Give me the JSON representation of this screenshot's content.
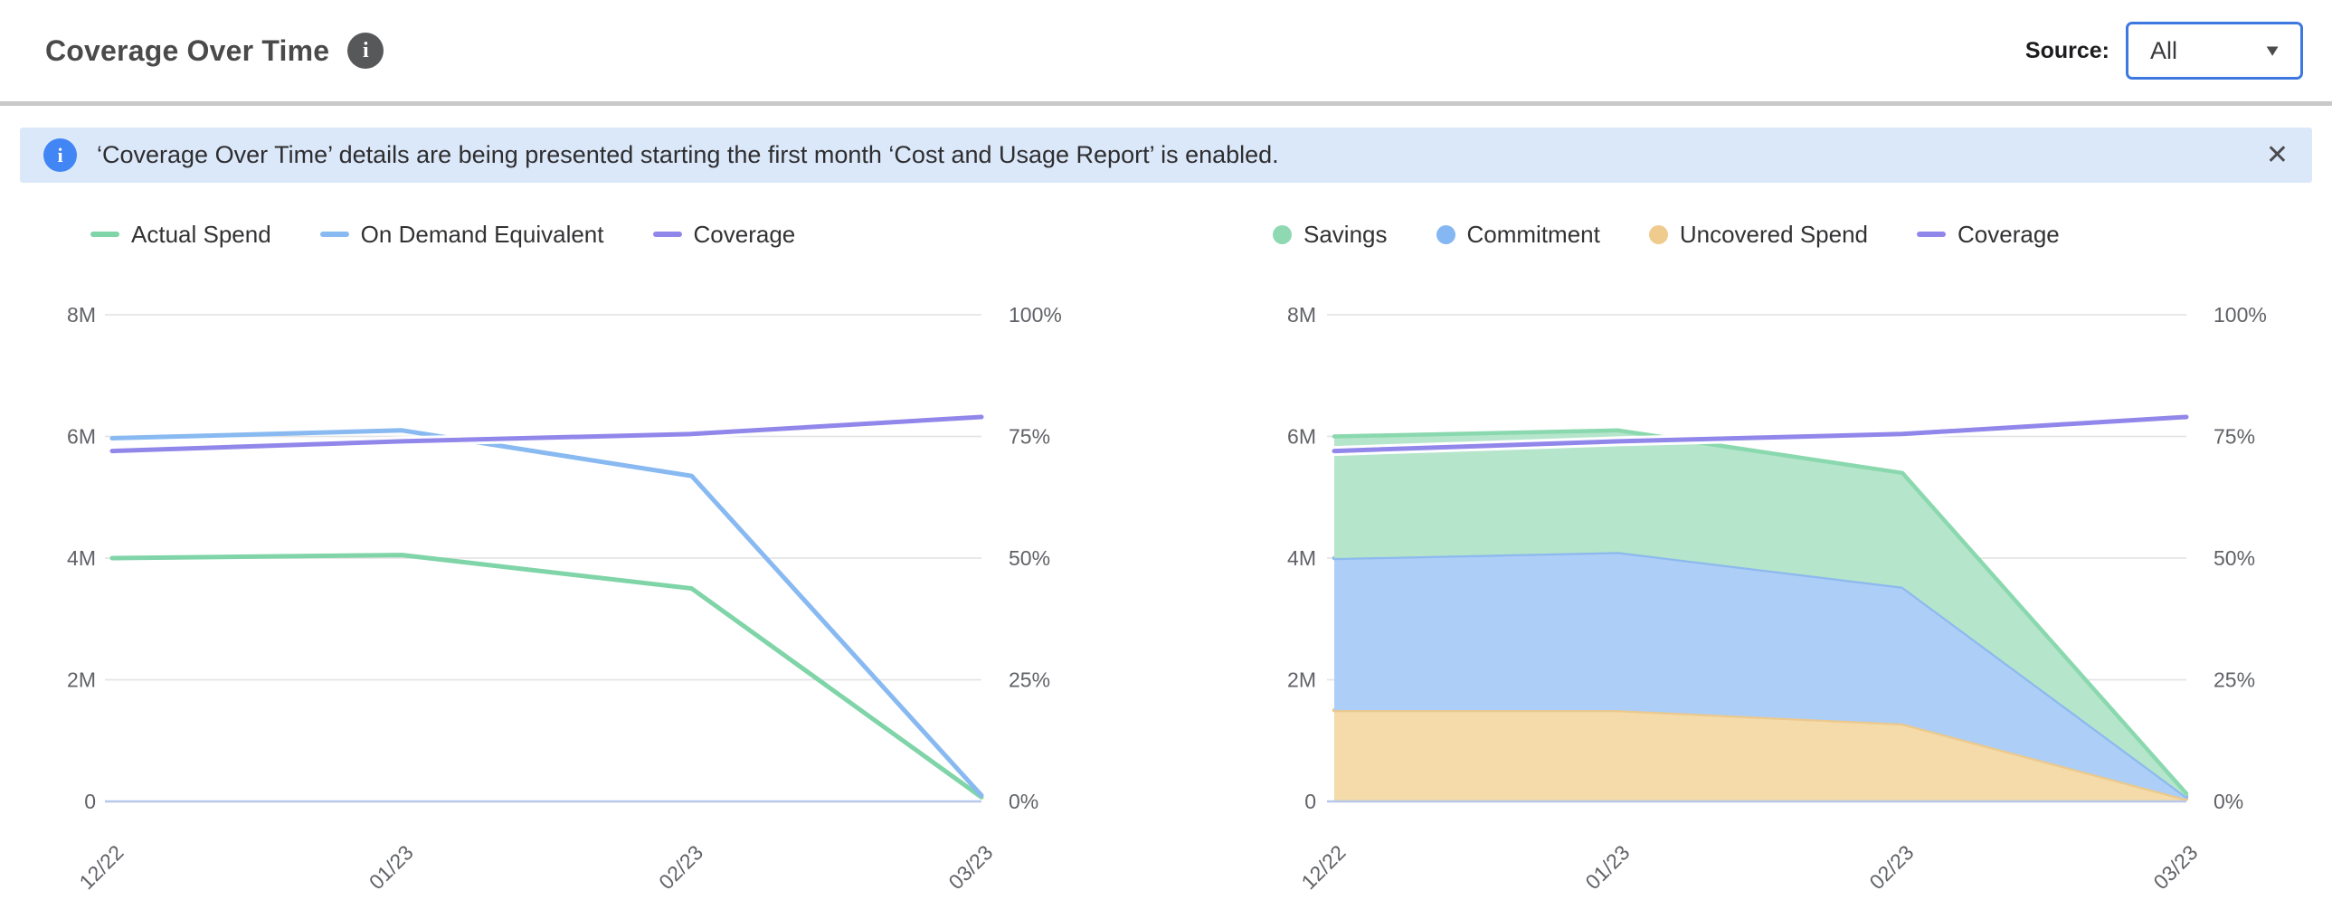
{
  "header": {
    "title": "Coverage Over Time",
    "info_glyph": "i",
    "source_label": "Source:",
    "source_value": "All",
    "dropdown_arrow": "▼"
  },
  "banner": {
    "info_glyph": "i",
    "text": "‘Coverage Over Time’ details are being presented starting the first month ‘Cost and Usage Report’ is enabled.",
    "close_glyph": "✕"
  },
  "colors": {
    "accent_blue": "#3c78e0",
    "banner_bg": "#dbe8fa",
    "banner_icon_blue": "#4285f4",
    "grid": "#e4e4e7",
    "zero_line": "#b7c7ea",
    "green": "#7fd4a8",
    "green_fill": "#b5e5cb",
    "blue": "#88b9f1",
    "blue_fill": "#adcef6",
    "purple": "#9186ea",
    "orange": "#ecc98d",
    "orange_fill": "#f4dba9"
  },
  "chart_data": [
    {
      "type": "line",
      "title": "",
      "categories": [
        "12/22",
        "01/23",
        "02/23",
        "03/23"
      ],
      "unit_left": "M",
      "ylim_left": [
        0,
        8
      ],
      "ylim_right": [
        0,
        100
      ],
      "y_left_ticks": [
        "0",
        "2M",
        "4M",
        "6M",
        "8M"
      ],
      "y_right_ticks": [
        "0%",
        "25%",
        "50%",
        "75%",
        "100%"
      ],
      "grid": true,
      "legend_position": "top",
      "legend": [
        {
          "label": "Actual Spend",
          "swatch": "line",
          "color": "#7fd4a8"
        },
        {
          "label": "On Demand Equivalent",
          "swatch": "line",
          "color": "#88b9f1"
        },
        {
          "label": "Coverage",
          "swatch": "line",
          "color": "#9186ea"
        }
      ],
      "series": [
        {
          "name": "Actual Spend",
          "render": "line",
          "axis": "left",
          "color": "#7fd4a8",
          "values": [
            4.0,
            4.05,
            3.5,
            0.07
          ]
        },
        {
          "name": "On Demand Equivalent",
          "render": "line",
          "axis": "left",
          "color": "#88b9f1",
          "values": [
            5.97,
            6.1,
            5.35,
            0.1
          ]
        },
        {
          "name": "Coverage",
          "render": "line",
          "axis": "right",
          "color": "#9186ea",
          "values": [
            72,
            74,
            75.5,
            79
          ]
        }
      ]
    },
    {
      "type": "area",
      "stacked": true,
      "title": "",
      "categories": [
        "12/22",
        "01/23",
        "02/23",
        "03/23"
      ],
      "unit_left": "M",
      "ylim_left": [
        0,
        8
      ],
      "ylim_right": [
        0,
        100
      ],
      "y_left_ticks": [
        "0",
        "2M",
        "4M",
        "6M",
        "8M"
      ],
      "y_right_ticks": [
        "0%",
        "25%",
        "50%",
        "75%",
        "100%"
      ],
      "grid": true,
      "legend_position": "top",
      "legend": [
        {
          "label": "Savings",
          "swatch": "dot",
          "color": "#8fd9b2"
        },
        {
          "label": "Commitment",
          "swatch": "dot",
          "color": "#85b7f2"
        },
        {
          "label": "Uncovered Spend",
          "swatch": "dot",
          "color": "#f0cb8e"
        },
        {
          "label": "Coverage",
          "swatch": "line",
          "color": "#9186ea"
        }
      ],
      "series": [
        {
          "name": "Uncovered Spend",
          "render": "area",
          "axis": "left",
          "color": "#ecc98d",
          "fill": "#f4dba9",
          "values": [
            1.5,
            1.5,
            1.28,
            0.04
          ]
        },
        {
          "name": "Commitment",
          "render": "area",
          "axis": "left",
          "color": "#8db9ef",
          "fill": "#adcef6",
          "values": [
            2.5,
            2.6,
            2.25,
            0.04
          ]
        },
        {
          "name": "Savings",
          "render": "area",
          "axis": "left",
          "color": "#8ad8ae",
          "fill": "#b5e5cb",
          "values": [
            2.0,
            2.0,
            1.87,
            0.05
          ]
        },
        {
          "name": "Coverage",
          "render": "line",
          "axis": "right",
          "color": "#9186ea",
          "values": [
            72,
            74,
            75.5,
            79
          ]
        }
      ]
    }
  ]
}
